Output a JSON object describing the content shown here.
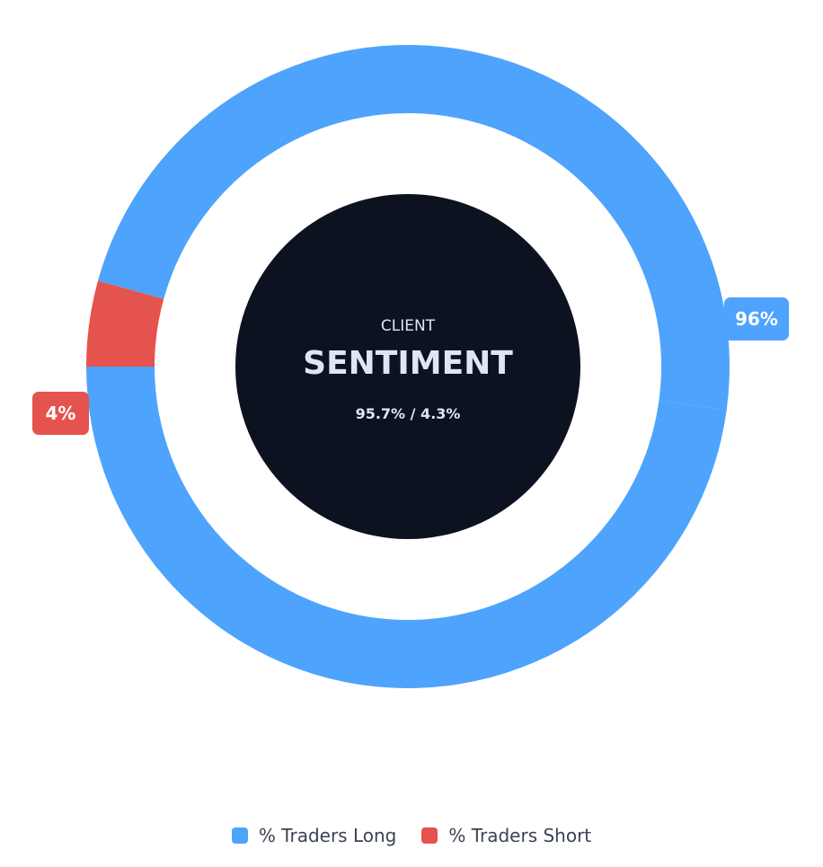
{
  "center": {
    "kicker": "CLIENT",
    "title": "SENTIMENT",
    "subtitle": "95.7% / 4.3%"
  },
  "colors": {
    "long": "#4ea3fc",
    "short": "#e5534f",
    "center_fill": "#0d1221"
  },
  "chart_data": {
    "type": "pie",
    "title": "",
    "series": [
      {
        "name": "% Traders Long",
        "value": 95.7,
        "label": "96%",
        "color": "#4ea3fc"
      },
      {
        "name": "% Traders Short",
        "value": 4.3,
        "label": "4%",
        "color": "#e5534f"
      }
    ],
    "legend_position": "bottom"
  },
  "legend": {
    "items": [
      {
        "label": "% Traders Long"
      },
      {
        "label": "% Traders Short"
      }
    ]
  }
}
